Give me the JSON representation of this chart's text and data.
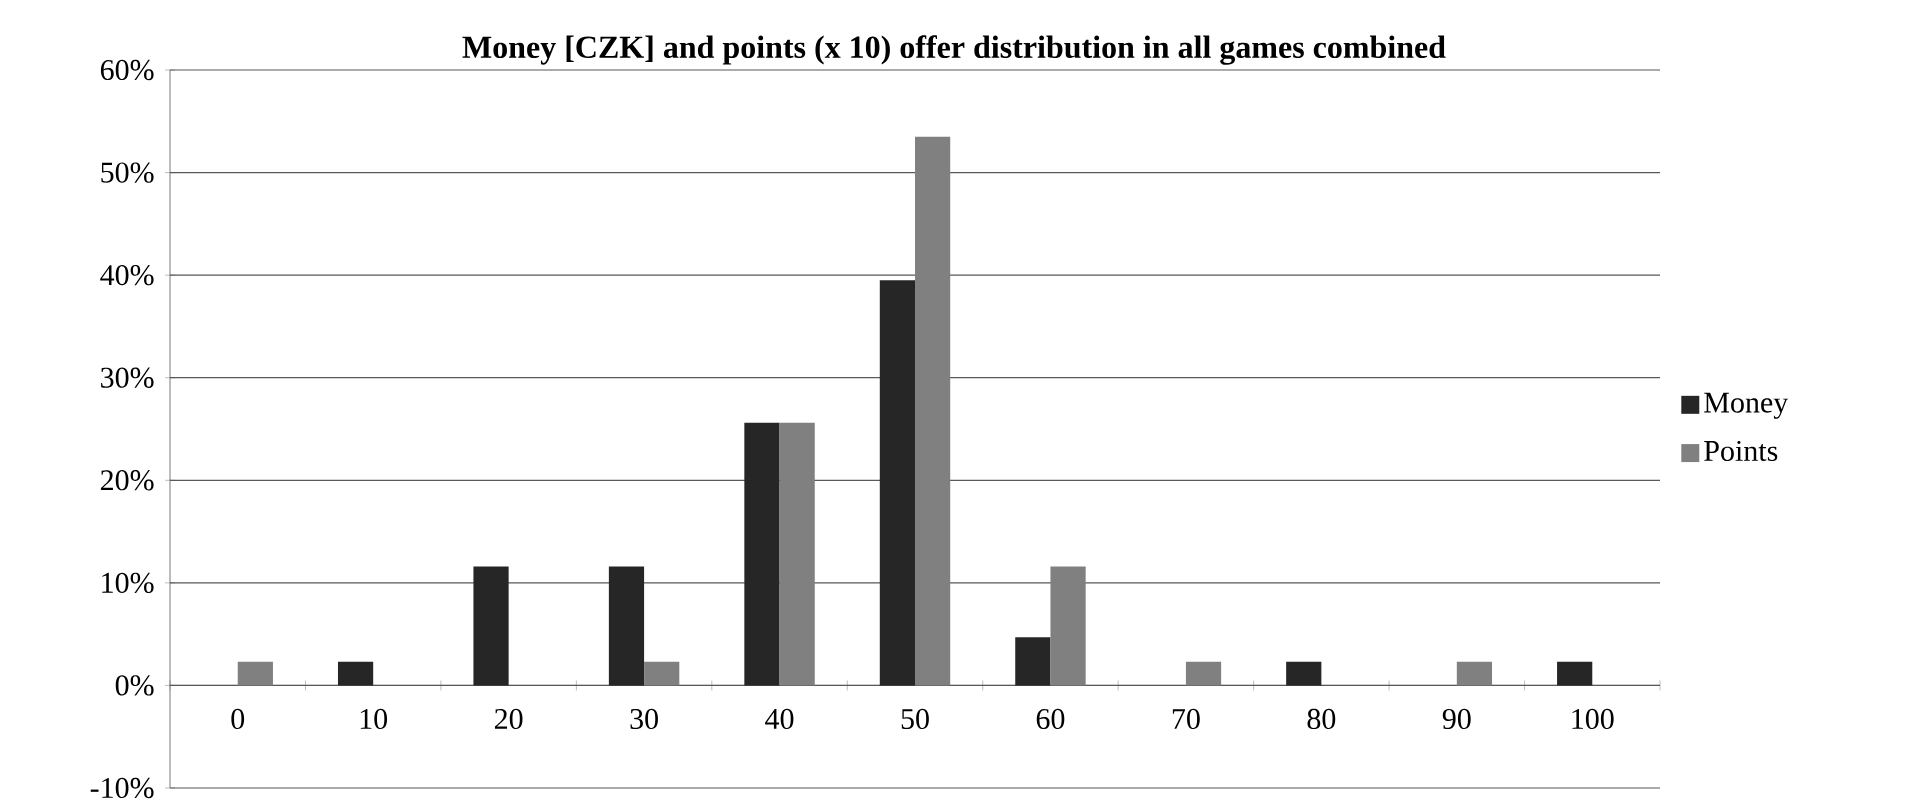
{
  "chart_data": {
    "type": "bar",
    "title": "Money [CZK] and points (x 10) offer distribution in all games combined",
    "categories": [
      "0",
      "10",
      "20",
      "30",
      "40",
      "50",
      "60",
      "70",
      "80",
      "90",
      "100"
    ],
    "series": [
      {
        "name": "Money",
        "color": "#262626",
        "values": [
          0,
          2.3,
          11.6,
          11.6,
          25.6,
          39.5,
          4.7,
          0,
          2.3,
          0,
          2.3
        ]
      },
      {
        "name": "Points",
        "color": "#808080",
        "values": [
          2.3,
          0,
          0,
          2.3,
          25.6,
          53.5,
          11.6,
          2.3,
          0,
          2.3,
          0
        ]
      }
    ],
    "ylim": [
      -10,
      60
    ],
    "yticks": [
      {
        "value": -10,
        "label": "-10%"
      },
      {
        "value": 0,
        "label": "0%"
      },
      {
        "value": 10,
        "label": "10%"
      },
      {
        "value": 20,
        "label": "20%"
      },
      {
        "value": 30,
        "label": "30%"
      },
      {
        "value": 40,
        "label": "40%"
      },
      {
        "value": 50,
        "label": "50%"
      },
      {
        "value": 60,
        "label": "60%"
      }
    ],
    "grid": "y",
    "legend": "right"
  }
}
